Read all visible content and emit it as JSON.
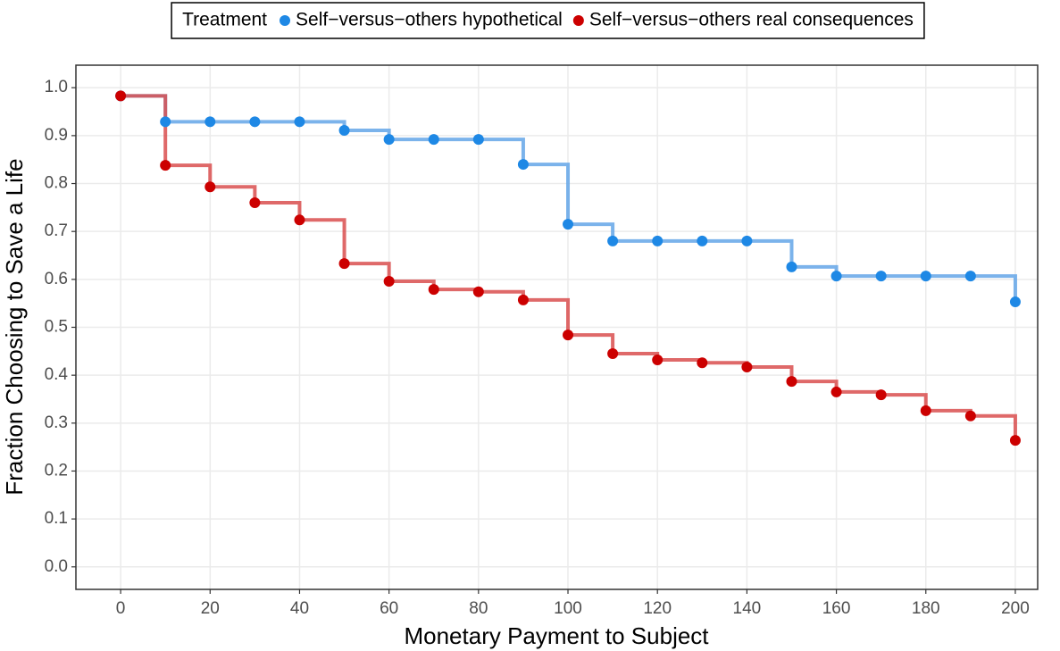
{
  "chart_data": {
    "type": "step",
    "xlabel": "Monetary Payment to Subject",
    "ylabel": "Fraction Choosing to Save a Life",
    "legend_title": "Treatment",
    "legend_position": "top",
    "grid": true,
    "x": [
      0,
      10,
      20,
      30,
      40,
      50,
      60,
      70,
      80,
      90,
      100,
      110,
      120,
      130,
      140,
      150,
      160,
      170,
      180,
      190,
      200
    ],
    "series": [
      {
        "name": "Self−versus−others hypothetical",
        "color": "#1e88e5",
        "line_color": "#64a6e8",
        "values": [
          0.983,
          0.929,
          0.929,
          0.929,
          0.929,
          0.911,
          0.892,
          0.892,
          0.892,
          0.84,
          0.715,
          0.68,
          0.68,
          0.68,
          0.68,
          0.626,
          0.607,
          0.607,
          0.607,
          0.607,
          0.553
        ]
      },
      {
        "name": "Self−versus−others real consequences",
        "color": "#cc0000",
        "line_color": "#d94f4f",
        "values": [
          0.983,
          0.838,
          0.793,
          0.76,
          0.724,
          0.633,
          0.596,
          0.579,
          0.574,
          0.557,
          0.484,
          0.445,
          0.432,
          0.426,
          0.417,
          0.387,
          0.365,
          0.359,
          0.326,
          0.315,
          0.264
        ]
      }
    ],
    "xlim": [
      -10,
      205
    ],
    "xticks": [
      0,
      20,
      40,
      60,
      80,
      100,
      120,
      140,
      160,
      180,
      200
    ],
    "ylim": [
      -0.047,
      1.047
    ],
    "yticks": [
      {
        "value": 0,
        "label": "0.0"
      },
      0.1,
      0.2,
      0.3,
      0.4,
      0.5,
      0.6,
      0.7,
      0.8,
      0.9,
      {
        "value": 1,
        "label": "1.0"
      }
    ]
  }
}
